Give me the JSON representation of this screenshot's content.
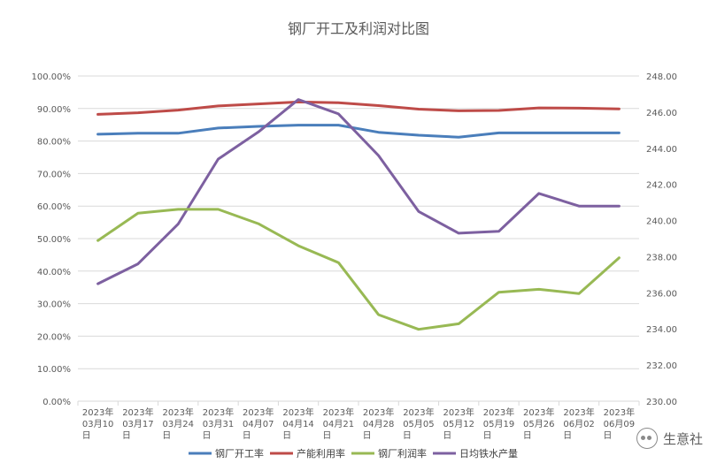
{
  "chart_data": {
    "type": "line",
    "title": "钢厂开工及利润对比图",
    "categories": [
      [
        "2023年",
        "03月10",
        "日"
      ],
      [
        "2023年",
        "03月17",
        "日"
      ],
      [
        "2023年",
        "03月24",
        "日"
      ],
      [
        "2023年",
        "03月31",
        "日"
      ],
      [
        "2023年",
        "04月07",
        "日"
      ],
      [
        "2023年",
        "04月14",
        "日"
      ],
      [
        "2023年",
        "04月21",
        "日"
      ],
      [
        "2023年",
        "04月28",
        "日"
      ],
      [
        "2023年",
        "05月05",
        "日"
      ],
      [
        "2023年",
        "05月12",
        "日"
      ],
      [
        "2023年",
        "05月19",
        "日"
      ],
      [
        "2023年",
        "05月26",
        "日"
      ],
      [
        "2023年",
        "06月02",
        "日"
      ],
      [
        "2023年",
        "06月09",
        "日"
      ]
    ],
    "y_left": {
      "min": 0,
      "max": 100,
      "step": 10,
      "ticks": [
        "0.00%",
        "10.00%",
        "20.00%",
        "30.00%",
        "40.00%",
        "50.00%",
        "60.00%",
        "70.00%",
        "80.00%",
        "90.00%",
        "100.00%"
      ]
    },
    "y_right": {
      "min": 230,
      "max": 248,
      "step": 2,
      "ticks": [
        "230.00",
        "232.00",
        "234.00",
        "236.00",
        "238.00",
        "240.00",
        "242.00",
        "244.00",
        "246.00",
        "248.00"
      ]
    },
    "grid": true,
    "legend_position": "bottom",
    "series": [
      {
        "name": "钢厂开工率",
        "axis": "left",
        "color": "#4a7ebb",
        "values": [
          82.1,
          82.4,
          82.4,
          84.0,
          84.5,
          84.9,
          84.9,
          82.7,
          81.8,
          81.2,
          82.5,
          82.5,
          82.5,
          82.5
        ]
      },
      {
        "name": "产能利用率",
        "axis": "left",
        "color": "#be4b48",
        "values": [
          88.2,
          88.7,
          89.5,
          90.8,
          91.4,
          92.0,
          91.8,
          90.9,
          89.8,
          89.3,
          89.4,
          90.2,
          90.1,
          89.9
        ]
      },
      {
        "name": "钢厂利润率",
        "axis": "left",
        "color": "#98b954",
        "values": [
          49.4,
          57.8,
          59.0,
          59.0,
          54.6,
          47.8,
          42.6,
          26.6,
          22.1,
          23.8,
          33.5,
          34.4,
          33.1,
          44.1
        ]
      },
      {
        "name": "日均铁水产量",
        "axis": "right",
        "color": "#7d60a0",
        "values": [
          236.5,
          237.6,
          239.8,
          243.4,
          244.9,
          246.7,
          245.9,
          243.6,
          240.5,
          239.3,
          239.4,
          241.5,
          240.8,
          240.8
        ]
      }
    ]
  },
  "watermark": {
    "text": "生意社",
    "icon": "wechat-icon"
  }
}
